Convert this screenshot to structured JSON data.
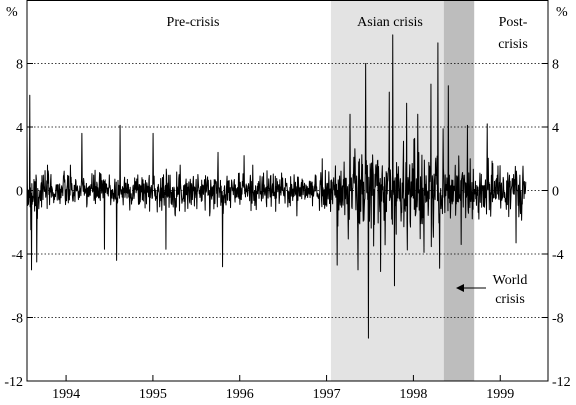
{
  "chart_data": {
    "type": "line",
    "title": "",
    "xlabel": "",
    "ylabel": "%",
    "y_unit_left": "%",
    "y_unit_right": "%",
    "ylim": [
      -12,
      12
    ],
    "yticks": [
      -12,
      -8,
      -4,
      0,
      4,
      8
    ],
    "ytick_labels": [
      "-12",
      "-8",
      "-4",
      "0",
      "4",
      "8"
    ],
    "xlim": [
      1993.55,
      1999.55
    ],
    "xticks": [
      1994,
      1995,
      1996,
      1997,
      1998,
      1999
    ],
    "xtick_labels": [
      "1994",
      "1995",
      "1996",
      "1997",
      "1998",
      "1999"
    ],
    "gridlines": "dotted horizontal",
    "colors": {
      "line": "#000000",
      "asian_crisis_shade": "#e3e3e3",
      "world_crisis_shade": "#bdbdbd",
      "grid": "#000000"
    },
    "periods": [
      {
        "label": "Pre-crisis",
        "start": 1993.55,
        "end": 1997.05,
        "shade": false
      },
      {
        "label": "Asian crisis",
        "start": 1997.05,
        "end": 1998.35,
        "shade": "light"
      },
      {
        "label": "World crisis",
        "start": 1998.35,
        "end": 1998.7,
        "shade": "dark"
      },
      {
        "label": "Post-crisis",
        "start": 1998.7,
        "end": 1999.55,
        "shade": false
      }
    ],
    "annotations": {
      "pre_crisis": "Pre-crisis",
      "asian_crisis": "Asian crisis",
      "post_crisis_line1": "Post-",
      "post_crisis_line2": "crisis",
      "world_crisis_line1": "World",
      "world_crisis_line2": "crisis"
    },
    "series": [
      {
        "regimes": [
          {
            "start": 1993.55,
            "end": 1993.7,
            "std": 2.2
          },
          {
            "start": 1993.7,
            "end": 1997.0,
            "std": 1.0
          },
          {
            "start": 1997.0,
            "end": 1997.2,
            "std": 1.4
          },
          {
            "start": 1997.2,
            "end": 1998.35,
            "std": 2.6
          },
          {
            "start": 1998.35,
            "end": 1999.3,
            "std": 1.4
          }
        ],
        "points_per_year": 250,
        "extremes": [
          {
            "x": 1993.58,
            "y": 6.0
          },
          {
            "x": 1993.6,
            "y": -5.0
          },
          {
            "x": 1993.66,
            "y": -4.5
          },
          {
            "x": 1994.18,
            "y": 3.6
          },
          {
            "x": 1994.44,
            "y": -3.7
          },
          {
            "x": 1994.58,
            "y": -4.4
          },
          {
            "x": 1994.62,
            "y": 4.1
          },
          {
            "x": 1995.0,
            "y": 3.6
          },
          {
            "x": 1995.15,
            "y": -3.7
          },
          {
            "x": 1995.75,
            "y": 2.4
          },
          {
            "x": 1995.8,
            "y": -4.8
          },
          {
            "x": 1996.05,
            "y": 2.2
          },
          {
            "x": 1996.95,
            "y": 2.0
          },
          {
            "x": 1997.12,
            "y": -4.7
          },
          {
            "x": 1997.27,
            "y": 4.8
          },
          {
            "x": 1997.36,
            "y": -5.0
          },
          {
            "x": 1997.45,
            "y": 8.0
          },
          {
            "x": 1997.48,
            "y": -9.3
          },
          {
            "x": 1997.62,
            "y": -5.1
          },
          {
            "x": 1997.72,
            "y": 6.2
          },
          {
            "x": 1997.76,
            "y": 9.8
          },
          {
            "x": 1997.78,
            "y": -6.0
          },
          {
            "x": 1997.92,
            "y": 5.5
          },
          {
            "x": 1998.05,
            "y": 4.8
          },
          {
            "x": 1998.12,
            "y": -3.9
          },
          {
            "x": 1998.2,
            "y": 6.7
          },
          {
            "x": 1998.28,
            "y": 9.3
          },
          {
            "x": 1998.3,
            "y": -4.9
          },
          {
            "x": 1998.4,
            "y": 6.6
          },
          {
            "x": 1998.55,
            "y": -3.4
          },
          {
            "x": 1998.62,
            "y": 4.1
          },
          {
            "x": 1998.85,
            "y": 4.2
          },
          {
            "x": 1999.18,
            "y": -3.3
          }
        ]
      }
    ]
  }
}
